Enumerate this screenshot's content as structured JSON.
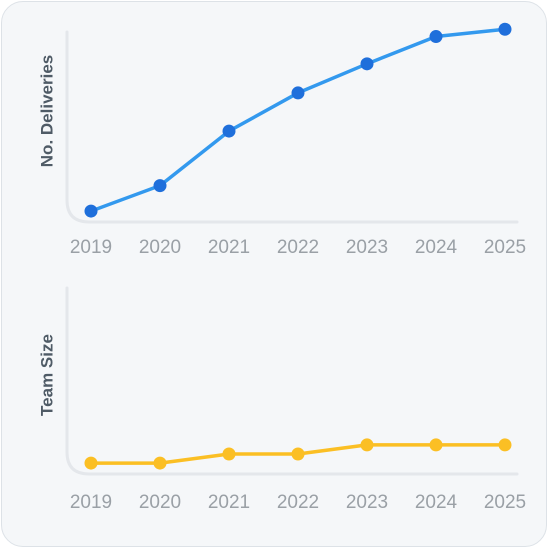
{
  "chart_data": [
    {
      "type": "line",
      "ylabel": "No. Deliveries",
      "x": [
        "2019",
        "2020",
        "2021",
        "2022",
        "2023",
        "2024",
        "2025"
      ],
      "series": [
        {
          "values": [
            0.06,
            0.2,
            0.5,
            0.71,
            0.87,
            1.02,
            1.06
          ]
        }
      ],
      "ylim": [
        0,
        1.1
      ],
      "color": "#3399ee",
      "marker_color": "#1f6fdb",
      "grid": false
    },
    {
      "type": "line",
      "ylabel": "Team Size",
      "x": [
        "2019",
        "2020",
        "2021",
        "2022",
        "2023",
        "2024",
        "2025"
      ],
      "series": [
        {
          "values": [
            0.06,
            0.06,
            0.11,
            0.11,
            0.16,
            0.16,
            0.16
          ]
        }
      ],
      "ylim": [
        0,
        1.1
      ],
      "color": "#fbbf24",
      "marker_color": "#fbbf24",
      "grid": false
    }
  ]
}
